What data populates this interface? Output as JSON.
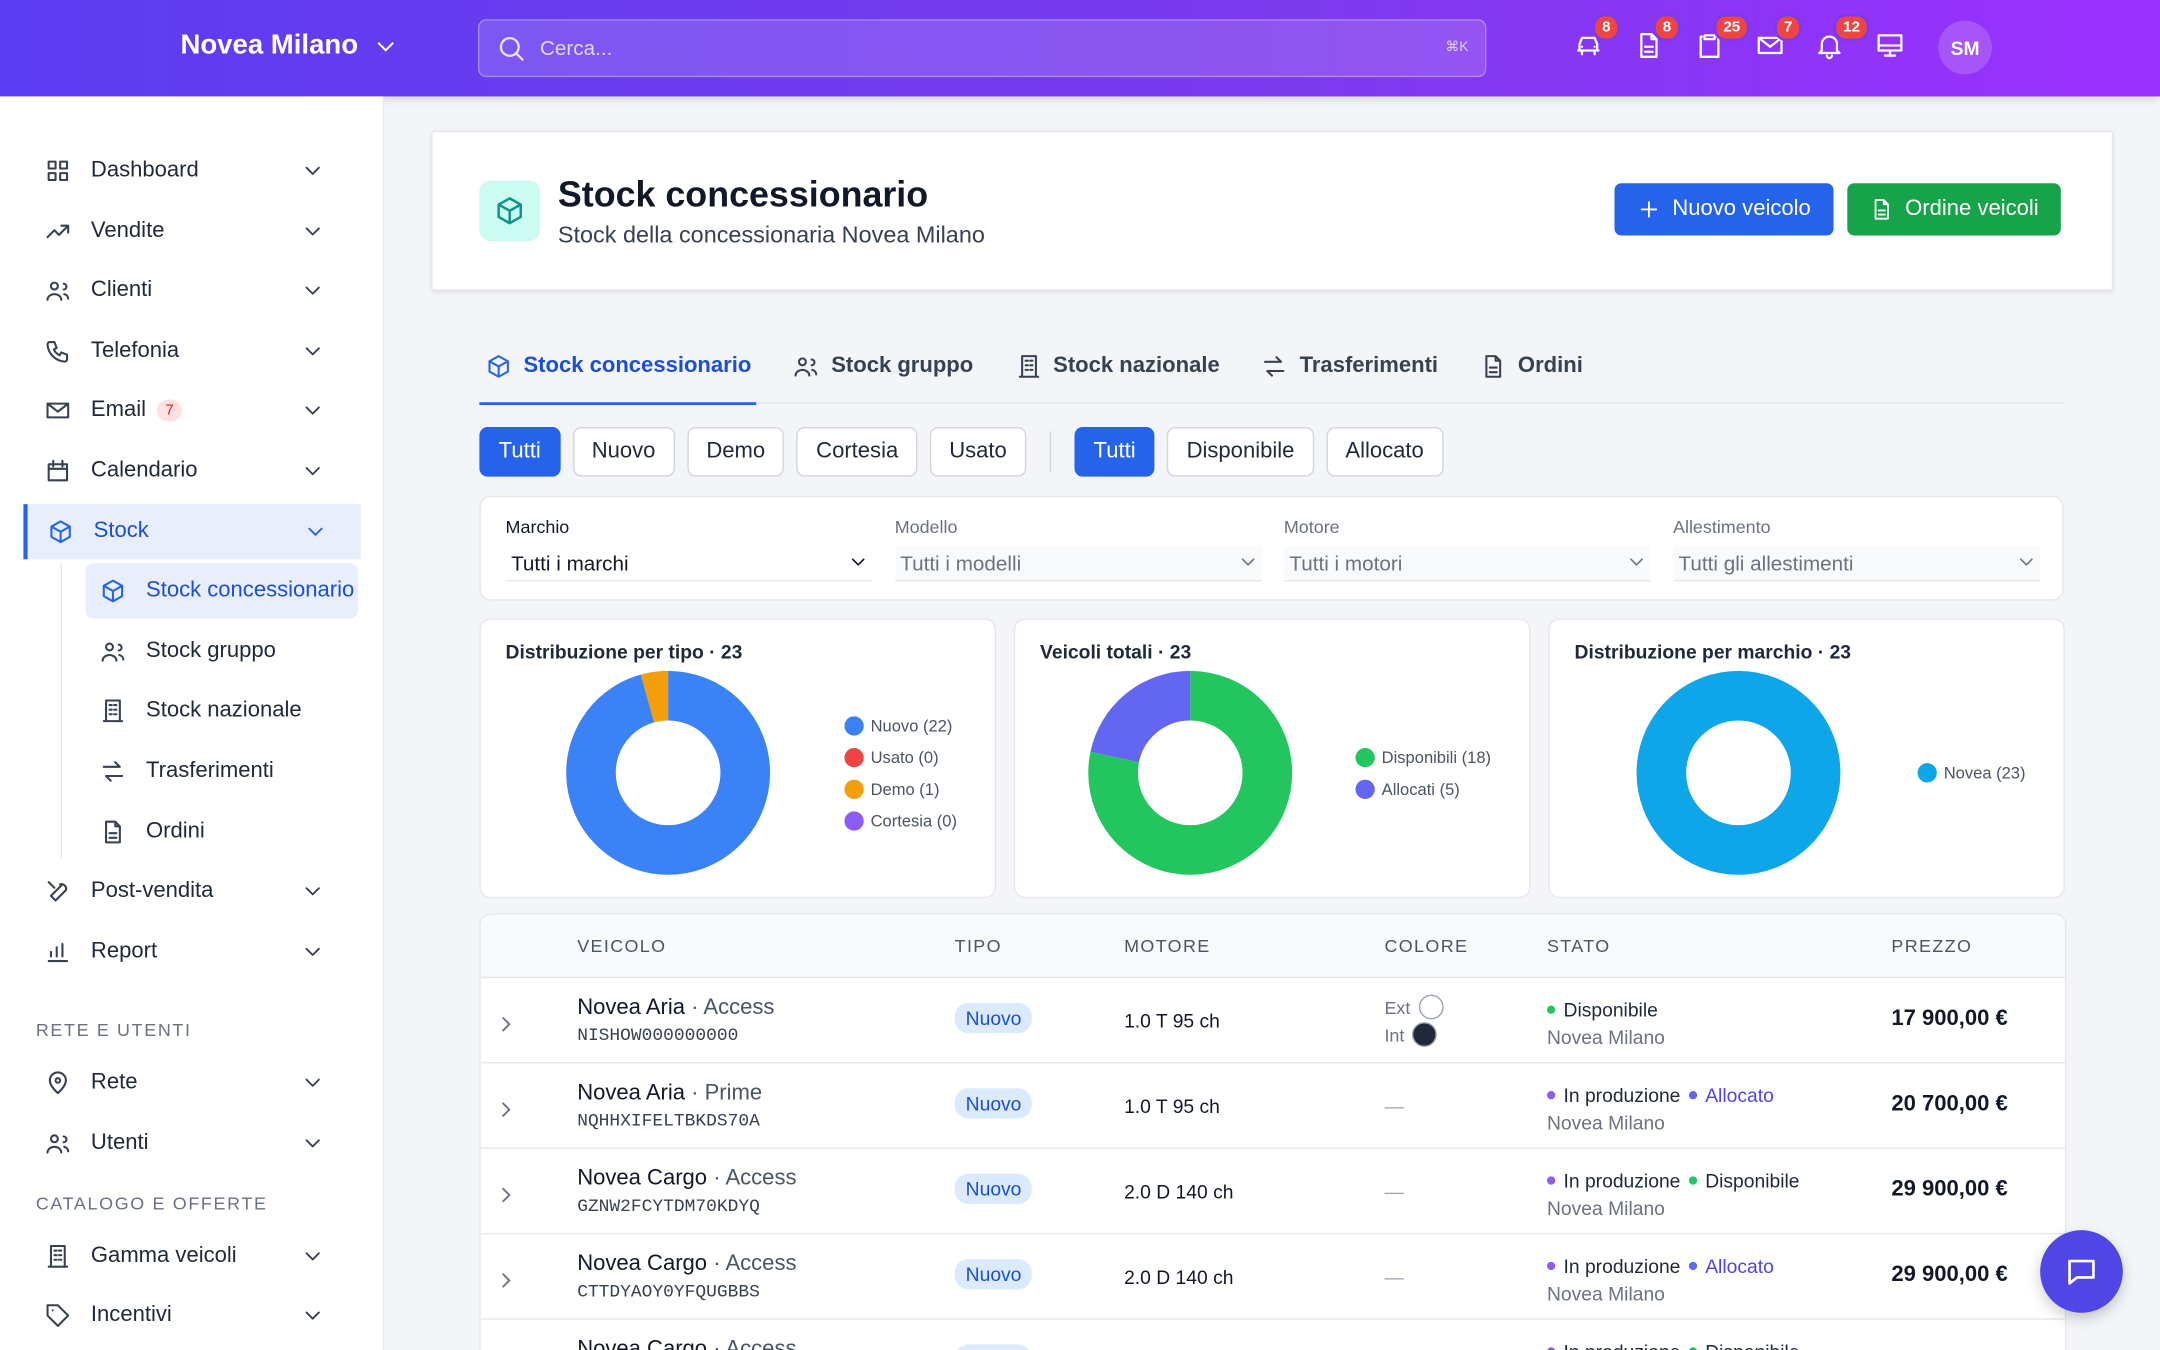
{
  "header": {
    "brand": "Novea Milano",
    "search_placeholder": "Cerca...",
    "shortcut": "⌘K",
    "badges": [
      "8",
      "8",
      "25",
      "7",
      "12"
    ],
    "avatar": "SM"
  },
  "sidebar": [
    {
      "label": "Dashboard"
    },
    {
      "label": "Vendite"
    },
    {
      "label": "Clienti"
    },
    {
      "label": "Telefonia"
    },
    {
      "label": "Email",
      "badge": "7"
    },
    {
      "label": "Calendario"
    },
    {
      "label": "Stock",
      "children": [
        "Stock concessionario",
        "Stock gruppo",
        "Stock nazionale",
        "Trasferimenti",
        "Ordini"
      ]
    },
    {
      "label": "Post-vendita"
    },
    {
      "label": "Report"
    },
    {
      "heading": "RETE E UTENTI"
    },
    {
      "label": "Rete"
    },
    {
      "label": "Utenti"
    },
    {
      "heading": "CATALOGO E OFFERTE"
    },
    {
      "label": "Gamma veicoli"
    },
    {
      "label": "Incentivi"
    }
  ],
  "page": {
    "title": "Stock concessionario",
    "subtitle": "Stock della concessionaria Novea Milano",
    "buttons": [
      "Nuovo veicolo",
      "Ordine veicoli"
    ]
  },
  "tabs": [
    "Stock concessionario",
    "Stock gruppo",
    "Stock nazionale",
    "Trasferimenti",
    "Ordini"
  ],
  "chips_type": [
    "Tutti",
    "Nuovo",
    "Demo",
    "Cortesia",
    "Usato"
  ],
  "chips_status": [
    "Tutti",
    "Disponibile",
    "Allocato"
  ],
  "filters": [
    {
      "label": "Marchio",
      "value": "Tutti i marchi"
    },
    {
      "label": "Modello",
      "value": "Tutti i modelli"
    },
    {
      "label": "Motore",
      "value": "Tutti i motori"
    },
    {
      "label": "Allestimento",
      "value": "Tutti gli allestimenti"
    }
  ],
  "charts": [
    {
      "type": "donut",
      "title": "Distribuzione per tipo · 23",
      "legend": [
        "Nuovo (22)",
        "Usato (0)",
        "Demo (1)",
        "Cortesia (0)"
      ],
      "values": [
        22,
        0,
        1,
        0
      ],
      "colors": [
        "#3b82f6",
        "#ef4444",
        "#f59e0b",
        "#8b5cf6"
      ]
    },
    {
      "type": "donut",
      "title": "Veicoli totali · 23",
      "legend": [
        "Disponibili (18)",
        "Allocati (5)"
      ],
      "values": [
        18,
        5
      ],
      "colors": [
        "#22c55e",
        "#6366f1"
      ]
    },
    {
      "type": "donut",
      "title": "Distribuzione per marchio · 23",
      "legend": [
        "Novea (23)"
      ],
      "values": [
        23
      ],
      "colors": [
        "#0ea5e9"
      ]
    }
  ],
  "table": {
    "columns": [
      "VEICOLO",
      "TIPO",
      "MOTORE",
      "COLORE",
      "STATO",
      "PREZZO"
    ],
    "rows": [
      {
        "model": "Novea Aria",
        "trim": " · Access",
        "vin": "NISHOW000000000",
        "tipo": "Nuovo",
        "motore": "1.0 T 95 ch",
        "colore": {
          "ext": "Ext",
          "int": "Int"
        },
        "stato": [
          {
            "text": "Disponibile",
            "dot": "#22c55e"
          }
        ],
        "sede": "Novea Milano",
        "prezzo": "17 900,00 €"
      },
      {
        "model": "Novea Aria",
        "trim": " · Prime",
        "vin": "NQHHXIFELTBKDS70A",
        "tipo": "Nuovo",
        "motore": "1.0 T 95 ch",
        "colore": "—",
        "stato": [
          {
            "text": "In produzione",
            "dot": "#8b5cf6"
          },
          {
            "text": "Allocato",
            "dot": "#6366f1",
            "accent": true
          }
        ],
        "sede": "Novea Milano",
        "prezzo": "20 700,00 €"
      },
      {
        "model": "Novea Cargo",
        "trim": " · Access",
        "vin": "GZNW2FCYTDM70KDYQ",
        "tipo": "Nuovo",
        "motore": "2.0 D 140 ch",
        "colore": "—",
        "stato": [
          {
            "text": "In produzione",
            "dot": "#8b5cf6"
          },
          {
            "text": "Disponibile",
            "dot": "#22c55e"
          }
        ],
        "sede": "Novea Milano",
        "prezzo": "29 900,00 €"
      },
      {
        "model": "Novea Cargo",
        "trim": " · Access",
        "vin": "CTTDYAOY0YFQUGBBS",
        "tipo": "Nuovo",
        "motore": "2.0 D 140 ch",
        "colore": "—",
        "stato": [
          {
            "text": "In produzione",
            "dot": "#8b5cf6"
          },
          {
            "text": "Allocato",
            "dot": "#6366f1",
            "accent": true
          }
        ],
        "sede": "Novea Milano",
        "prezzo": "29 900,00 €"
      },
      {
        "model": "Novea Cargo",
        "trim": " · Access",
        "vin": "",
        "tipo": "Nuovo",
        "motore": "",
        "colore": "—",
        "stato": [
          {
            "text": "In produzione",
            "dot": "#8b5cf6"
          },
          {
            "text": "Disponibile",
            "dot": "#22c55e"
          }
        ],
        "sede": "",
        "prezzo": ""
      }
    ]
  }
}
